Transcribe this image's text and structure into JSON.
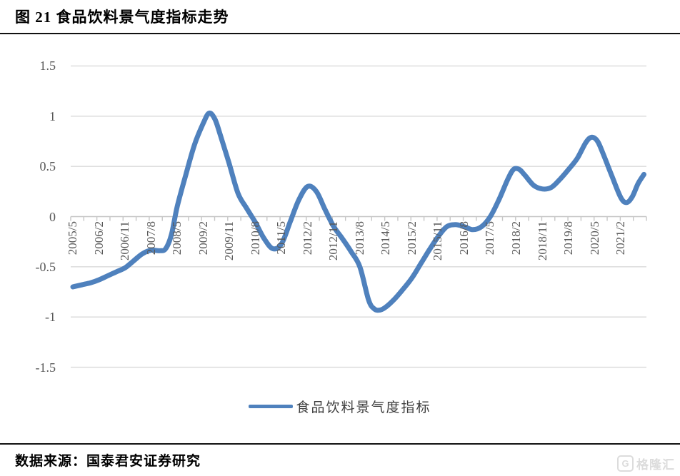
{
  "title": "图 21  食品饮料景气度指标走势",
  "source": "数据来源：国泰君安证券研究",
  "watermark": {
    "logo_letter": "G",
    "text": "格隆汇"
  },
  "legend": {
    "label": "食品饮料景气度指标"
  },
  "colors": {
    "line": "#4f81bd",
    "grid": "#d9d9d9",
    "axis": "#c6c6c6",
    "axis_text": "#595959",
    "title_text": "#000000",
    "watermark": "#dcdcdc"
  },
  "chart_data": {
    "type": "line",
    "title": "食品饮料景气度指标走势",
    "xlabel": "",
    "ylabel": "",
    "ylim": [
      -1.5,
      1.5
    ],
    "grid": "horizontal",
    "legend_position": "bottom",
    "y_ticks": [
      1.5,
      1,
      0.5,
      0,
      -0.5,
      -1,
      -1.5
    ],
    "y_tick_labels": [
      "1.5",
      "1",
      "0.5",
      "0",
      "-0.5",
      "-1",
      "-1.5"
    ],
    "x_tick_labels": [
      "2005/5",
      "2006/2",
      "2006/11",
      "2007/8",
      "2008/5",
      "2009/2",
      "2009/11",
      "2010/8",
      "2011/5",
      "2012/2",
      "2012/11",
      "2013/8",
      "2014/5",
      "2015/2",
      "2015/11",
      "2016/8",
      "2017/5",
      "2018/2",
      "2018/11",
      "2019/8",
      "2020/5",
      "2021/2"
    ],
    "series": [
      {
        "name": "食品饮料景气度指标",
        "points": [
          [
            "2005/5",
            -0.7
          ],
          [
            "2005/8",
            -0.68
          ],
          [
            "2005/11",
            -0.66
          ],
          [
            "2006/2",
            -0.63
          ],
          [
            "2006/5",
            -0.59
          ],
          [
            "2006/8",
            -0.55
          ],
          [
            "2006/11",
            -0.51
          ],
          [
            "2007/2",
            -0.44
          ],
          [
            "2007/5",
            -0.37
          ],
          [
            "2007/8",
            -0.335
          ],
          [
            "2007/11",
            -0.34
          ],
          [
            "2008/1",
            -0.32
          ],
          [
            "2008/3",
            -0.18
          ],
          [
            "2008/5",
            0.1
          ],
          [
            "2008/8",
            0.42
          ],
          [
            "2008/11",
            0.72
          ],
          [
            "2009/2",
            0.93
          ],
          [
            "2009/4",
            1.03
          ],
          [
            "2009/6",
            0.97
          ],
          [
            "2009/8",
            0.8
          ],
          [
            "2009/11",
            0.52
          ],
          [
            "2010/2",
            0.23
          ],
          [
            "2010/5",
            0.08
          ],
          [
            "2010/8",
            -0.06
          ],
          [
            "2010/11",
            -0.22
          ],
          [
            "2011/2",
            -0.32
          ],
          [
            "2011/5",
            -0.27
          ],
          [
            "2011/8",
            -0.05
          ],
          [
            "2011/11",
            0.17
          ],
          [
            "2012/2",
            0.3
          ],
          [
            "2012/5",
            0.25
          ],
          [
            "2012/8",
            0.07
          ],
          [
            "2012/11",
            -0.1
          ],
          [
            "2013/2",
            -0.22
          ],
          [
            "2013/5",
            -0.35
          ],
          [
            "2013/8",
            -0.5
          ],
          [
            "2013/11",
            -0.83
          ],
          [
            "2014/1",
            -0.92
          ],
          [
            "2014/3",
            -0.93
          ],
          [
            "2014/5",
            -0.9
          ],
          [
            "2014/8",
            -0.82
          ],
          [
            "2014/11",
            -0.72
          ],
          [
            "2015/2",
            -0.61
          ],
          [
            "2015/5",
            -0.47
          ],
          [
            "2015/8",
            -0.33
          ],
          [
            "2015/11",
            -0.2
          ],
          [
            "2016/2",
            -0.1
          ],
          [
            "2016/5",
            -0.08
          ],
          [
            "2016/8",
            -0.1
          ],
          [
            "2016/11",
            -0.13
          ],
          [
            "2017/2",
            -0.1
          ],
          [
            "2017/5",
            0.0
          ],
          [
            "2017/8",
            0.17
          ],
          [
            "2017/11",
            0.37
          ],
          [
            "2018/1",
            0.47
          ],
          [
            "2018/3",
            0.47
          ],
          [
            "2018/5",
            0.41
          ],
          [
            "2018/8",
            0.31
          ],
          [
            "2018/11",
            0.275
          ],
          [
            "2019/2",
            0.29
          ],
          [
            "2019/5",
            0.37
          ],
          [
            "2019/8",
            0.47
          ],
          [
            "2019/11",
            0.58
          ],
          [
            "2020/2",
            0.74
          ],
          [
            "2020/4",
            0.79
          ],
          [
            "2020/6",
            0.75
          ],
          [
            "2020/8",
            0.62
          ],
          [
            "2020/11",
            0.4
          ],
          [
            "2021/2",
            0.19
          ],
          [
            "2021/4",
            0.14
          ],
          [
            "2021/6",
            0.2
          ],
          [
            "2021/8",
            0.33
          ],
          [
            "2021/10",
            0.42
          ]
        ]
      }
    ]
  }
}
